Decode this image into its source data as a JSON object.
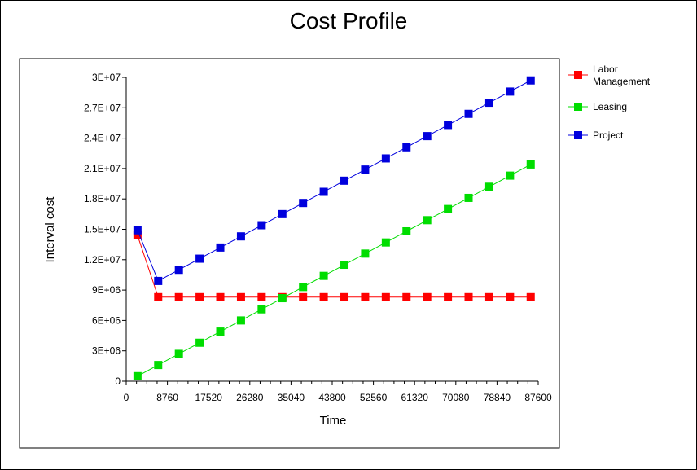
{
  "chart_data": {
    "type": "line",
    "title": "Cost Profile",
    "xlabel": "Time",
    "ylabel": "Interval cost",
    "xlim": [
      0,
      87600
    ],
    "ylim": [
      0,
      30000000
    ],
    "x_ticks": [
      0,
      8760,
      17520,
      26280,
      35040,
      43800,
      52560,
      61320,
      70080,
      78840,
      87600
    ],
    "x_tick_labels": [
      "0",
      "8760",
      "17520",
      "26280",
      "35040",
      "43800",
      "52560",
      "61320",
      "70080",
      "78840",
      "87600"
    ],
    "y_ticks": [
      0,
      3000000,
      6000000,
      9000000,
      12000000,
      15000000,
      18000000,
      21000000,
      24000000,
      27000000,
      30000000
    ],
    "y_tick_labels": [
      "0",
      "3E+06",
      "6E+06",
      "9E+06",
      "1.2E+07",
      "1.5E+07",
      "1.8E+07",
      "2.1E+07",
      "2.4E+07",
      "2.7E+07",
      "3E+07"
    ],
    "x": [
      2400,
      6800,
      11200,
      15600,
      20000,
      24400,
      28800,
      33200,
      37600,
      42000,
      46400,
      50800,
      55200,
      59600,
      64000,
      68400,
      72800,
      77200,
      81600,
      86000
    ],
    "legend_position": "right",
    "series": [
      {
        "name": "Labor\nManagement",
        "color": "#ff0000",
        "values": [
          14400000,
          8300000,
          8300000,
          8300000,
          8300000,
          8300000,
          8300000,
          8300000,
          8300000,
          8300000,
          8300000,
          8300000,
          8300000,
          8300000,
          8300000,
          8300000,
          8300000,
          8300000,
          8300000,
          8300000
        ]
      },
      {
        "name": "Leasing",
        "color": "#00dd00",
        "values": [
          500000,
          1600000,
          2700000,
          3800000,
          4900000,
          6000000,
          7100000,
          8200000,
          9300000,
          10400000,
          11500000,
          12600000,
          13700000,
          14800000,
          15900000,
          17000000,
          18100000,
          19200000,
          20300000,
          21400000
        ]
      },
      {
        "name": "Project",
        "color": "#0000dd",
        "values": [
          14900000,
          9900000,
          11000000,
          12100000,
          13200000,
          14300000,
          15400000,
          16500000,
          17600000,
          18700000,
          19800000,
          20900000,
          22000000,
          23100000,
          24200000,
          25300000,
          26400000,
          27500000,
          28600000,
          29700000
        ]
      }
    ]
  }
}
